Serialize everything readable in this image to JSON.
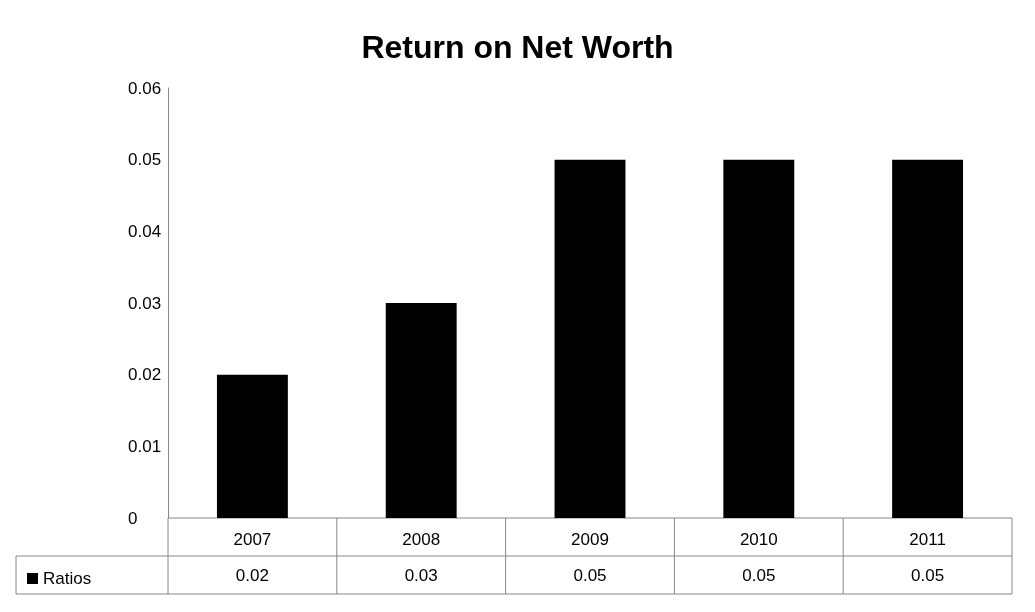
{
  "chart_data": {
    "type": "bar",
    "title": "Return on Net Worth",
    "categories": [
      "2007",
      "2008",
      "2009",
      "2010",
      "2011"
    ],
    "series": [
      {
        "name": "Ratios",
        "color": "#000000",
        "values": [
          0.02,
          0.03,
          0.05,
          0.05,
          0.05
        ]
      }
    ],
    "ylim": [
      0,
      0.06
    ],
    "yticks": [
      0,
      0.01,
      0.02,
      0.03,
      0.04,
      0.05,
      0.06
    ],
    "grid": false,
    "legend": "bottom left",
    "data_labels": true
  }
}
